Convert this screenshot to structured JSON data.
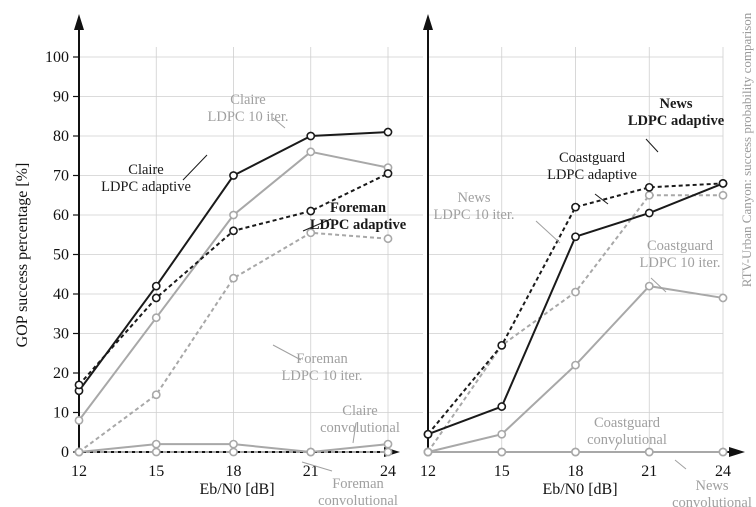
{
  "side_note": "RTV-Urban Canyon: success probability comparison",
  "chart_data": [
    {
      "type": "line",
      "xlabel": "Eb/N0 [dB]",
      "ylabel": "GOP success percentage [%]",
      "x": [
        12,
        15,
        18,
        21,
        24
      ],
      "xlim": [
        12,
        24
      ],
      "ylim": [
        0,
        100
      ],
      "yticks": [
        0,
        10,
        20,
        30,
        40,
        50,
        60,
        70,
        80,
        90,
        100
      ],
      "grid": true,
      "series": [
        {
          "name": "Claire LDPC adaptive",
          "values": [
            15.5,
            42,
            70,
            80,
            81
          ],
          "color": "#1a1a1a",
          "dash": false
        },
        {
          "name": "Claire LDPC 10 iter.",
          "values": [
            8,
            34,
            60,
            76,
            72
          ],
          "color": "#a8a8a8",
          "dash": false
        },
        {
          "name": "Foreman LDPC adaptive",
          "values": [
            17,
            39,
            56,
            61,
            70.5
          ],
          "color": "#1a1a1a",
          "dash": true
        },
        {
          "name": "Foreman LDPC 10 iter.",
          "values": [
            0,
            14.5,
            44,
            55.5,
            54
          ],
          "color": "#a8a8a8",
          "dash": true
        },
        {
          "name": "Claire convolutional",
          "values": [
            0,
            2,
            2,
            0,
            2
          ],
          "color": "#a8a8a8",
          "dash": false
        },
        {
          "name": "Foreman convolutional",
          "values": [
            0,
            0,
            0,
            0,
            0
          ],
          "color": "#a8a8a8",
          "dash": true
        }
      ],
      "annotations": [
        {
          "lines": [
            "Claire",
            "LDPC adaptive"
          ],
          "color": "#1a1a1a",
          "bold": false
        },
        {
          "lines": [
            "Claire",
            "LDPC 10 iter."
          ],
          "color": "#a0a0a0",
          "bold": false
        },
        {
          "lines": [
            "Foreman",
            "LDPC adaptive"
          ],
          "color": "#1a1a1a",
          "bold": true
        },
        {
          "lines": [
            "Foreman",
            "LDPC 10 iter."
          ],
          "color": "#a0a0a0",
          "bold": false
        },
        {
          "lines": [
            "Claire",
            "convolutional"
          ],
          "color": "#a0a0a0",
          "bold": false
        },
        {
          "lines": [
            "Foreman",
            "convolutional"
          ],
          "color": "#a0a0a0",
          "bold": false
        }
      ]
    },
    {
      "type": "line",
      "xlabel": "Eb/N0 [dB]",
      "ylabel": "",
      "x": [
        12,
        15,
        18,
        21,
        24
      ],
      "xlim": [
        12,
        24
      ],
      "ylim": [
        0,
        100
      ],
      "grid": true,
      "series": [
        {
          "name": "News LDPC adaptive",
          "values": [
            4.5,
            27,
            62,
            67,
            68
          ],
          "color": "#1a1a1a",
          "dash": true
        },
        {
          "name": "Coastguard LDPC adaptive",
          "values": [
            4.5,
            11.5,
            54.5,
            60.5,
            68
          ],
          "color": "#1a1a1a",
          "dash": false
        },
        {
          "name": "News LDPC 10 iter.",
          "values": [
            0,
            27,
            40.5,
            65,
            65
          ],
          "color": "#a8a8a8",
          "dash": true
        },
        {
          "name": "Coastguard LDPC 10 iter.",
          "values": [
            0,
            4.5,
            22,
            42,
            39
          ],
          "color": "#a8a8a8",
          "dash": false
        },
        {
          "name": "Coastguard convolutional",
          "values": [
            0,
            0,
            0,
            0,
            0
          ],
          "color": "#a8a8a8",
          "dash": false
        },
        {
          "name": "News convolutional",
          "values": [
            0,
            0,
            0,
            0,
            0
          ],
          "color": "#a8a8a8",
          "dash": true
        }
      ],
      "annotations": [
        {
          "lines": [
            "News",
            "LDPC adaptive"
          ],
          "color": "#1a1a1a",
          "bold": true
        },
        {
          "lines": [
            "Coastguard",
            "LDPC adaptive"
          ],
          "color": "#1a1a1a",
          "bold": false
        },
        {
          "lines": [
            "News",
            "LDPC 10 iter."
          ],
          "color": "#a0a0a0",
          "bold": false
        },
        {
          "lines": [
            "Coastguard",
            "LDPC 10 iter."
          ],
          "color": "#a0a0a0",
          "bold": false
        },
        {
          "lines": [
            "Coastguard",
            "convolutional"
          ],
          "color": "#a0a0a0",
          "bold": false
        },
        {
          "lines": [
            "News",
            "convolutional"
          ],
          "color": "#a0a0a0",
          "bold": false
        }
      ]
    }
  ]
}
